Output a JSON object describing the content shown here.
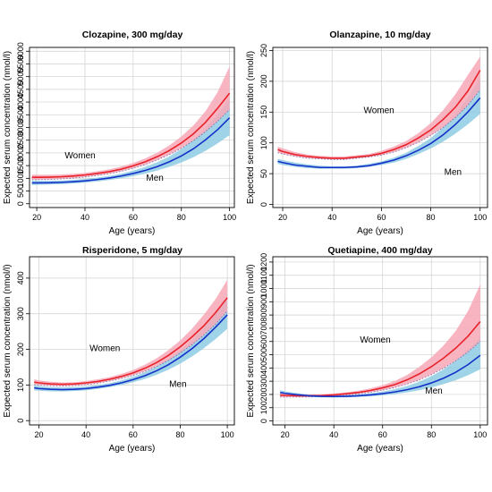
{
  "chart_data": [
    {
      "type": "line",
      "title": "Clozapine, 300 mg/day",
      "xlabel": "Age (years)",
      "ylabel": "Expected serum concentration (nmol/l)",
      "xlim": [
        17,
        102
      ],
      "ylim": [
        -150,
        6150
      ],
      "xticks": [
        20,
        40,
        60,
        80,
        100
      ],
      "yticks": [
        0,
        500,
        1000,
        1500,
        2000,
        2500,
        3000,
        3500,
        4000,
        4500,
        5000,
        5500,
        6000
      ],
      "x": [
        18,
        20,
        25,
        30,
        35,
        40,
        45,
        50,
        55,
        60,
        65,
        70,
        75,
        80,
        85,
        90,
        95,
        100
      ],
      "series": [
        {
          "name": "Women",
          "color": "#e8222a",
          "band_color": "#f7a8b6",
          "values": [
            1040,
            1040,
            1045,
            1060,
            1090,
            1130,
            1190,
            1260,
            1360,
            1490,
            1650,
            1850,
            2090,
            2390,
            2750,
            3200,
            3750,
            4350
          ],
          "lower": [
            940,
            945,
            955,
            975,
            1005,
            1050,
            1110,
            1180,
            1275,
            1395,
            1540,
            1720,
            1930,
            2180,
            2480,
            2830,
            3240,
            3700
          ],
          "upper": [
            1145,
            1140,
            1140,
            1150,
            1175,
            1215,
            1275,
            1350,
            1460,
            1600,
            1780,
            2010,
            2290,
            2650,
            3080,
            3640,
            4380,
            5400
          ]
        },
        {
          "name": "Men",
          "color": "#1530c8",
          "band_color": "#8ecbe3",
          "values": [
            820,
            820,
            825,
            840,
            865,
            900,
            950,
            1010,
            1090,
            1190,
            1310,
            1460,
            1650,
            1880,
            2160,
            2510,
            2910,
            3380
          ],
          "lower": [
            740,
            745,
            755,
            770,
            795,
            830,
            875,
            930,
            1000,
            1085,
            1185,
            1305,
            1450,
            1625,
            1830,
            2080,
            2370,
            2700
          ],
          "upper": [
            905,
            900,
            900,
            910,
            935,
            970,
            1025,
            1090,
            1180,
            1300,
            1445,
            1630,
            1860,
            2150,
            2510,
            2960,
            3500,
            4150
          ]
        }
      ],
      "annotations": [
        {
          "text": "Women",
          "x": 38,
          "y": 1780
        },
        {
          "text": "Men",
          "x": 69,
          "y": 900
        }
      ]
    },
    {
      "type": "line",
      "title": "Olanzapine, 10 mg/day",
      "xlabel": "Age (years)",
      "ylabel": "Expected serum concentration (nmol/l)",
      "xlim": [
        16,
        103
      ],
      "ylim": [
        -5,
        255
      ],
      "xticks": [
        20,
        40,
        60,
        80,
        100
      ],
      "yticks": [
        0,
        50,
        100,
        150,
        200,
        250
      ],
      "x": [
        18,
        20,
        25,
        30,
        35,
        40,
        45,
        50,
        55,
        60,
        65,
        70,
        75,
        80,
        85,
        90,
        95,
        100
      ],
      "series": [
        {
          "name": "Women",
          "color": "#e8222a",
          "band_color": "#f7a8b6",
          "values": [
            89,
            86,
            81,
            78,
            76,
            75,
            75,
            77,
            79,
            83,
            89,
            97,
            108,
            121,
            138,
            158,
            184,
            218
          ],
          "lower": [
            84,
            82,
            78,
            75,
            74,
            73,
            73,
            75,
            77,
            80,
            85,
            92,
            101,
            112,
            125,
            141,
            161,
            186
          ],
          "upper": [
            94,
            91,
            85,
            81,
            79,
            78,
            78,
            80,
            82,
            87,
            94,
            103,
            116,
            132,
            153,
            179,
            210,
            240
          ]
        },
        {
          "name": "Men",
          "color": "#1530c8",
          "band_color": "#8ecbe3",
          "values": [
            70,
            68,
            64,
            62,
            60,
            60,
            60,
            61,
            63,
            67,
            72,
            79,
            88,
            99,
            113,
            130,
            150,
            173
          ],
          "lower": [
            66,
            64,
            61,
            59,
            58,
            58,
            58,
            59,
            61,
            64,
            68,
            74,
            82,
            91,
            102,
            115,
            130,
            147
          ],
          "upper": [
            74,
            72,
            68,
            65,
            63,
            62,
            62,
            63,
            66,
            70,
            76,
            84,
            95,
            108,
            125,
            147,
            173,
            205
          ]
        }
      ],
      "annotations": [
        {
          "text": "Women",
          "x": 59,
          "y": 148
        },
        {
          "text": "Men",
          "x": 89,
          "y": 48
        }
      ]
    },
    {
      "type": "line",
      "title": "Risperidone, 5 mg/day",
      "xlabel": "Age (years)",
      "ylabel": "Expected serum concentration (nmol/l)",
      "xlim": [
        16,
        103
      ],
      "ylim": [
        -12,
        460
      ],
      "xticks": [
        20,
        40,
        60,
        80,
        100
      ],
      "yticks": [
        0,
        100,
        200,
        300,
        400
      ],
      "x": [
        18,
        20,
        25,
        30,
        35,
        40,
        45,
        50,
        55,
        60,
        65,
        70,
        75,
        80,
        85,
        90,
        95,
        100
      ],
      "series": [
        {
          "name": "Women",
          "color": "#e8222a",
          "band_color": "#f7a8b6",
          "values": [
            108,
            106,
            103,
            102,
            103,
            106,
            110,
            116,
            124,
            134,
            147,
            163,
            183,
            207,
            235,
            266,
            303,
            345
          ],
          "lower": [
            101,
            100,
            98,
            97,
            98,
            101,
            105,
            111,
            118,
            127,
            138,
            152,
            169,
            190,
            213,
            240,
            271,
            307
          ],
          "upper": [
            116,
            113,
            109,
            107,
            108,
            111,
            116,
            122,
            131,
            142,
            157,
            175,
            198,
            225,
            258,
            297,
            341,
            395
          ]
        },
        {
          "name": "Men",
          "color": "#1530c8",
          "band_color": "#8ecbe3",
          "values": [
            92,
            90,
            88,
            87,
            88,
            90,
            94,
            99,
            106,
            115,
            126,
            140,
            157,
            178,
            202,
            230,
            262,
            297
          ],
          "lower": [
            85,
            84,
            82,
            82,
            83,
            85,
            89,
            94,
            100,
            108,
            117,
            129,
            143,
            160,
            180,
            203,
            229,
            258
          ],
          "upper": [
            99,
            97,
            94,
            93,
            94,
            96,
            100,
            105,
            113,
            123,
            136,
            152,
            172,
            197,
            226,
            260,
            300,
            345
          ]
        }
      ],
      "annotations": [
        {
          "text": "Women",
          "x": 48,
          "y": 195
        },
        {
          "text": "Men",
          "x": 79,
          "y": 95
        }
      ]
    },
    {
      "type": "line",
      "title": "Quetiapine, 400 mg/day",
      "xlabel": "Age (years)",
      "ylabel": "Expected serum concentration (nmol/l)",
      "xlim": [
        15,
        103
      ],
      "ylim": [
        -30,
        1240
      ],
      "xticks": [
        20,
        40,
        60,
        80,
        100
      ],
      "yticks": [
        0,
        100,
        200,
        300,
        400,
        500,
        600,
        700,
        800,
        900,
        1000,
        1100,
        1200
      ],
      "x": [
        18,
        20,
        25,
        30,
        35,
        40,
        45,
        50,
        55,
        60,
        65,
        70,
        75,
        80,
        85,
        90,
        95,
        100
      ],
      "series": [
        {
          "name": "Women",
          "color": "#e8222a",
          "band_color": "#f7a8b6",
          "values": [
            195,
            193,
            190,
            190,
            192,
            197,
            205,
            215,
            230,
            250,
            275,
            310,
            355,
            410,
            475,
            550,
            640,
            750
          ],
          "lower": [
            180,
            180,
            180,
            181,
            184,
            188,
            195,
            204,
            216,
            232,
            252,
            278,
            310,
            350,
            398,
            455,
            520,
            600
          ],
          "upper": [
            210,
            207,
            201,
            200,
            201,
            207,
            216,
            228,
            246,
            270,
            302,
            347,
            408,
            480,
            570,
            680,
            830,
            1030
          ]
        },
        {
          "name": "Men",
          "color": "#1530c8",
          "band_color": "#8ecbe3",
          "values": [
            215,
            208,
            198,
            190,
            186,
            185,
            186,
            190,
            197,
            206,
            219,
            236,
            258,
            287,
            323,
            368,
            425,
            495
          ],
          "lower": [
            200,
            195,
            187,
            181,
            178,
            177,
            178,
            181,
            186,
            193,
            203,
            216,
            232,
            253,
            278,
            308,
            345,
            390
          ],
          "upper": [
            232,
            223,
            210,
            200,
            195,
            193,
            195,
            200,
            209,
            222,
            240,
            264,
            296,
            338,
            390,
            455,
            535,
            630
          ]
        }
      ],
      "annotations": [
        {
          "text": "Women",
          "x": 57,
          "y": 590
        },
        {
          "text": "Men",
          "x": 81,
          "y": 205
        }
      ]
    }
  ]
}
